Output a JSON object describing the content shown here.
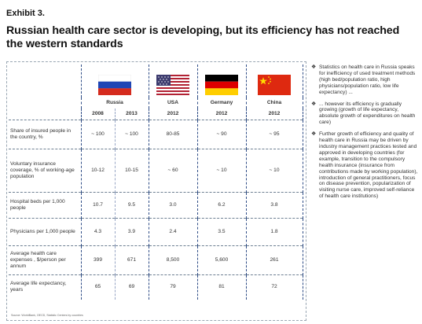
{
  "exhibit": "Exhibit 3.",
  "headline": "Russian health care sector is developing, but its efficiency has not reached the western standards",
  "columns": {
    "russia": "Russia",
    "usa": "USA",
    "germany": "Germany",
    "china": "China"
  },
  "years": [
    "2008",
    "2013",
    "2012",
    "2012",
    "2012"
  ],
  "flags": {
    "russia": [
      "#ffffff",
      "#1f45b5",
      "#d52b1e"
    ],
    "usa": [
      "#b22234",
      "#ffffff",
      "#3c3b6e"
    ],
    "germany": [
      "#000000",
      "#dd0000",
      "#ffce00"
    ],
    "china": [
      "#de2910",
      "#ffde00"
    ]
  },
  "rows": [
    {
      "label": "Share of insured people in the country, %",
      "values": [
        "~ 100",
        "~ 100",
        "80-85",
        "~ 90",
        "~ 95"
      ]
    },
    {
      "label": "Voluntary insurance coverage, % of working-age population",
      "values": [
        "10-12",
        "10-15",
        "~ 60",
        "~ 10",
        "~ 10"
      ]
    },
    {
      "label": "Hospital beds per 1,000 people",
      "values": [
        "10.7",
        "9.5",
        "3.0",
        "6.2",
        "3.8"
      ]
    },
    {
      "label": "Physicians per 1,000 people",
      "values": [
        "4.3",
        "3.9",
        "2.4",
        "3.5",
        "1.8"
      ]
    },
    {
      "label": "Average health care expenses , $/person per annum",
      "values": [
        "399",
        "671",
        "8,500",
        "5,600",
        "261"
      ]
    },
    {
      "label": "Average life   expectancy, years",
      "values": [
        "65",
        "69",
        "79",
        "81",
        "72"
      ]
    }
  ],
  "source": "Source: WorldBank, OECD, Statistic Centers by countries",
  "bullets": [
    "Statistics on health care in Russia speaks for inefficiency of used treatment methods (high bed/population ratio, high physicians/population ratio, low life expectancy) ...",
    "... however its efficiency is gradually growing (growth of life expectancy, absolute growth of expenditures on health care)",
    "Further growth of efficiency and quality of health care in Russia may be driven by industry management practices tested and approved in developing countries (for example, transition to the compulsory health insurance (insurance from contributions made by working population), introduction of general practitioners, focus on disease prevention, popularization of visiting nurse care, improved self-reliance of health care institutions)"
  ],
  "bullet_icon": "four-diamond-bullet-icon"
}
